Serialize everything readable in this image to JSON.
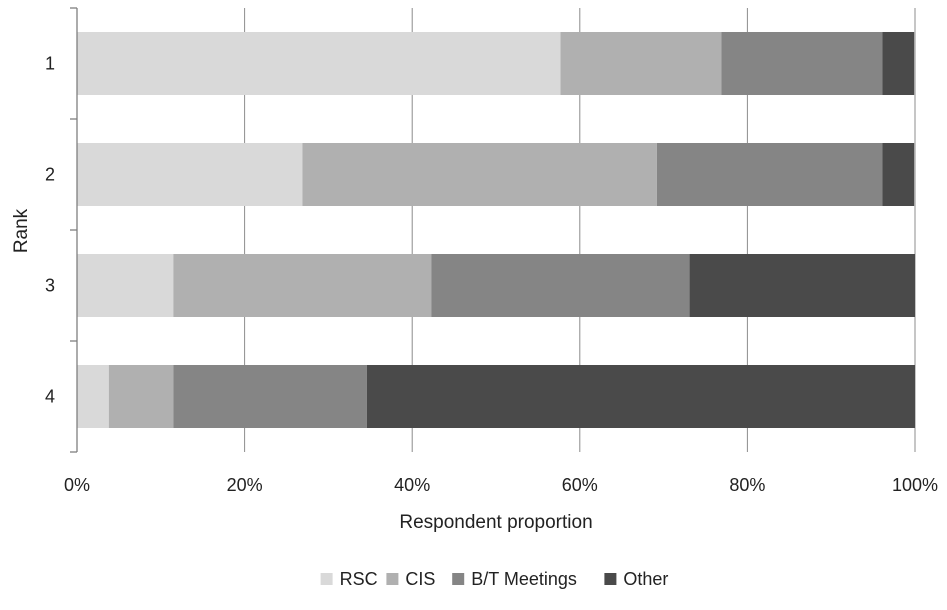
{
  "chart_data": {
    "type": "bar",
    "orientation": "horizontal",
    "stacked": "percent",
    "categories": [
      "1",
      "2",
      "3",
      "4"
    ],
    "series": [
      {
        "name": "RSC",
        "color": "#d9d9d9",
        "values": [
          57.7,
          26.9,
          11.5,
          3.8
        ]
      },
      {
        "name": "CIS",
        "color": "#b0b0b0",
        "values": [
          19.2,
          42.3,
          30.8,
          7.7
        ]
      },
      {
        "name": "B/T Meetings",
        "color": "#858585",
        "values": [
          19.2,
          26.9,
          30.8,
          23.1
        ]
      },
      {
        "name": "Other",
        "color": "#4a4a4a",
        "values": [
          3.8,
          3.8,
          26.9,
          65.4
        ]
      }
    ],
    "xlim": [
      0,
      100
    ],
    "x_ticks": [
      "0%",
      "20%",
      "40%",
      "60%",
      "80%",
      "100%"
    ],
    "xlabel": "Respondent proportion",
    "ylabel": "Rank",
    "grid": "vertical",
    "legend_position": "bottom"
  }
}
